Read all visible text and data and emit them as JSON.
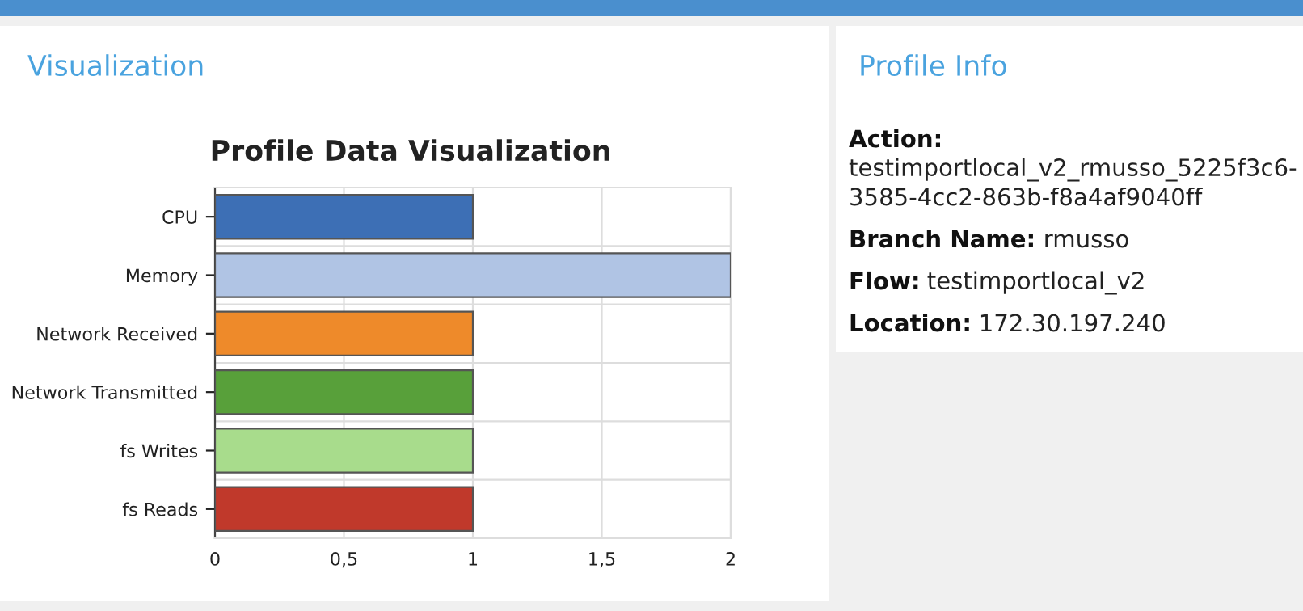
{
  "chart_data": [
    {
      "type": "bar",
      "orientation": "horizontal",
      "title": "Profile Data Visualization",
      "annotations": [
        "Visualization"
      ],
      "categories": [
        "CPU",
        "Memory",
        "Network Received",
        "Network Transmitted",
        "fs Writes",
        "fs Reads"
      ],
      "values": [
        1,
        2,
        1,
        1,
        1,
        1
      ],
      "colors": [
        "#3d6fb5",
        "#b0c4e4",
        "#ee8a2a",
        "#58a03a",
        "#a8dc8c",
        "#c0392b"
      ],
      "xlim": [
        0,
        2
      ],
      "xticks": [
        0,
        {
          "value": 0.5,
          "label": "0,5"
        },
        1,
        {
          "value": 1.5,
          "label": "1,5"
        },
        2
      ],
      "grid": true
    },
    {
      "type": "other",
      "title": "Profile Info",
      "annotations": [
        "Action: testimportlocal_v2_rmusso_5225f3c6-3585-4cc2-863b-f8a4af9040ff",
        "Branch Name: rmusso",
        "Flow: testimportlocal_v2",
        "Location: 172.30.197.240"
      ]
    }
  ]
}
